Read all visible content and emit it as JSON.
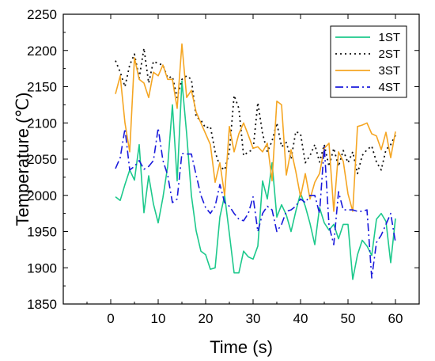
{
  "chart_data": {
    "type": "line",
    "xlabel": "Time (s)",
    "ylabel": "Temperature (℃)",
    "xlim": [
      -10,
      65
    ],
    "ylim": [
      1850,
      2250
    ],
    "xticks": [
      0,
      10,
      20,
      30,
      40,
      50,
      60
    ],
    "yticks": [
      1850,
      1900,
      1950,
      2000,
      2050,
      2100,
      2150,
      2200,
      2250
    ],
    "grid": false,
    "legend_position": "top-right",
    "series": [
      {
        "name": "1ST",
        "color": "#1dc98c",
        "style": "solid",
        "x": [
          1,
          2,
          3,
          4,
          5,
          6,
          7,
          8,
          9,
          10,
          11,
          12,
          13,
          14,
          15,
          16,
          17,
          18,
          19,
          20,
          21,
          22,
          23,
          24,
          25,
          26,
          27,
          28,
          29,
          30,
          31,
          32,
          33,
          34,
          35,
          36,
          37,
          38,
          39,
          40,
          41,
          42,
          43,
          44,
          45,
          46,
          47,
          48,
          49,
          50,
          51,
          52,
          53,
          54,
          55,
          56,
          57,
          58,
          59,
          60
        ],
        "values": [
          1998,
          1993,
          2015,
          2035,
          2021,
          2070,
          1976,
          2027,
          1988,
          1962,
          1997,
          2040,
          2125,
          2020,
          2158,
          2085,
          2000,
          1951,
          1923,
          1918,
          1898,
          1900,
          1970,
          2000,
          1947,
          1893,
          1893,
          1923,
          1915,
          1912,
          1930,
          2020,
          1995,
          2045,
          1970,
          1987,
          1973,
          1950,
          1978,
          2003,
          1985,
          1961,
          1932,
          1983,
          1962,
          1952,
          1960,
          1940,
          1960,
          1960,
          1884,
          1918,
          1938,
          1930,
          1917,
          1967,
          1975,
          1964,
          1907,
          1968
        ]
      },
      {
        "name": "2ST",
        "color": "#111111",
        "style": "dotted",
        "x": [
          1,
          2,
          3,
          4,
          5,
          6,
          7,
          8,
          9,
          10,
          11,
          12,
          13,
          14,
          15,
          16,
          17,
          18,
          19,
          20,
          21,
          22,
          23,
          24,
          25,
          26,
          27,
          28,
          29,
          30,
          31,
          32,
          33,
          34,
          35,
          36,
          37,
          38,
          39,
          40,
          41,
          42,
          43,
          44,
          45,
          46,
          47,
          48,
          49,
          50,
          51,
          52,
          53,
          54,
          55,
          56,
          57,
          58,
          59,
          60
        ],
        "values": [
          2186,
          2170,
          2150,
          2180,
          2195,
          2162,
          2203,
          2155,
          2185,
          2182,
          2180,
          2162,
          2164,
          2135,
          2160,
          2165,
          2160,
          2108,
          2104,
          2093,
          2095,
          2060,
          2040,
          2035,
          2060,
          2138,
          2120,
          2055,
          2060,
          2063,
          2128,
          2085,
          2060,
          2075,
          2100,
          2067,
          2073,
          2050,
          2088,
          2085,
          2045,
          2055,
          2070,
          2046,
          2070,
          2040,
          2065,
          2040,
          2062,
          2045,
          2060,
          2030,
          2055,
          2063,
          2068,
          2046,
          2035,
          2063,
          2070,
          2083
        ]
      },
      {
        "name": "3ST",
        "color": "#f5a623",
        "style": "solid",
        "x": [
          1,
          2,
          3,
          4,
          5,
          6,
          7,
          8,
          9,
          10,
          11,
          12,
          13,
          14,
          15,
          16,
          17,
          18,
          19,
          20,
          21,
          22,
          23,
          24,
          25,
          26,
          27,
          28,
          29,
          30,
          31,
          32,
          33,
          34,
          35,
          36,
          37,
          38,
          39,
          40,
          41,
          42,
          43,
          44,
          45,
          46,
          47,
          48,
          49,
          50,
          51,
          52,
          53,
          54,
          55,
          56,
          57,
          58,
          59,
          60
        ],
        "values": [
          2140,
          2165,
          2100,
          2060,
          2190,
          2160,
          2155,
          2135,
          2170,
          2165,
          2180,
          2160,
          2160,
          2120,
          2209,
          2135,
          2145,
          2115,
          2100,
          2085,
          2070,
          2018,
          2045,
          2000,
          2095,
          2060,
          2085,
          2100,
          2083,
          2065,
          2067,
          2060,
          2072,
          2020,
          2130,
          2125,
          2028,
          2063,
          2033,
          1998,
          2030,
          1995,
          2018,
          2030,
          2065,
          2072,
          1978,
          2060,
          2047,
          2002,
          1978,
          2095,
          2097,
          2100,
          2085,
          2082,
          2063,
          2087,
          2052,
          2088
        ]
      },
      {
        "name": "4ST",
        "color": "#1a1adb",
        "style": "dashdot",
        "x": [
          1,
          2,
          3,
          4,
          5,
          6,
          7,
          8,
          9,
          10,
          11,
          12,
          13,
          14,
          15,
          16,
          17,
          18,
          19,
          20,
          21,
          22,
          23,
          24,
          25,
          26,
          27,
          28,
          29,
          30,
          31,
          32,
          33,
          34,
          35,
          36,
          37,
          38,
          39,
          40,
          41,
          42,
          43,
          44,
          45,
          46,
          47,
          48,
          49,
          50,
          51,
          52,
          53,
          54,
          55,
          56,
          57,
          58,
          59,
          60
        ],
        "values": [
          2037,
          2052,
          2092,
          2035,
          2040,
          2048,
          2036,
          2040,
          2048,
          2093,
          2048,
          2028,
          1990,
          1995,
          2058,
          2057,
          2057,
          2028,
          2000,
          1983,
          1975,
          1985,
          2015,
          1990,
          1985,
          1975,
          1967,
          1965,
          1975,
          1998,
          1950,
          1975,
          1985,
          1980,
          1950,
          1960,
          1978,
          1980,
          1985,
          1995,
          1990,
          2000,
          2000,
          1975,
          2068,
          1958,
          1932,
          2005,
          1980,
          1980,
          1980,
          1978,
          1978,
          1980,
          1886,
          1935,
          1945,
          1960,
          1975,
          1935
        ]
      }
    ]
  }
}
